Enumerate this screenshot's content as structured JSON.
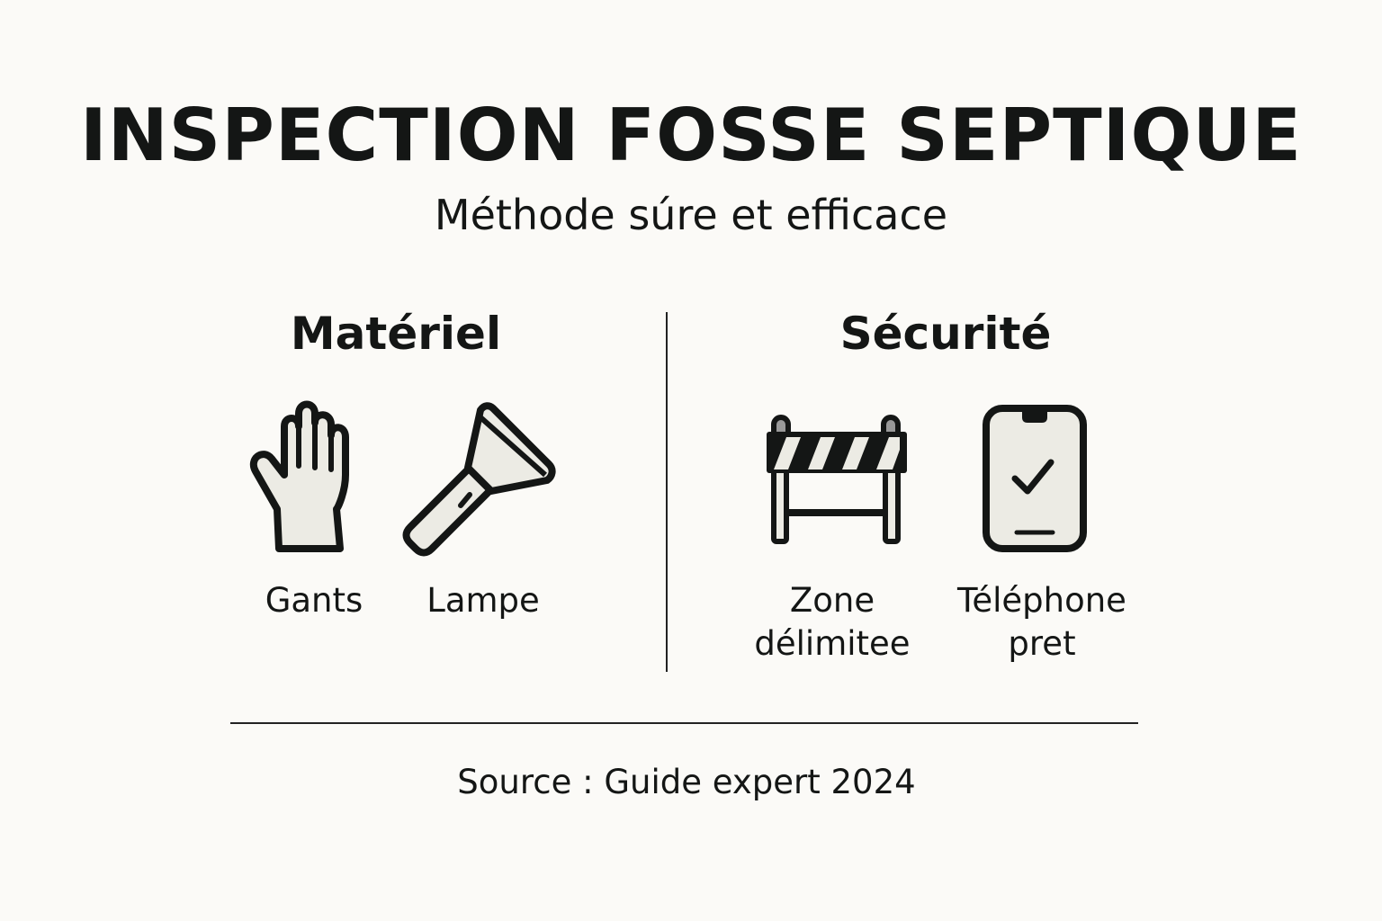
{
  "title": "INSPECTION FOSSE SEPTIQUE",
  "subtitle": "Méthode súre et efficace",
  "sections": [
    {
      "heading": "Matériel",
      "items": [
        {
          "icon": "glove-icon",
          "label": "Gants"
        },
        {
          "icon": "flashlight-icon",
          "label": "Lampe"
        }
      ]
    },
    {
      "heading": "Sécurité",
      "items": [
        {
          "icon": "barrier-icon",
          "label_lines": [
            "Zone",
            "délimitee"
          ]
        },
        {
          "icon": "phone-check-icon",
          "label_lines": [
            "Téléphone",
            "pret"
          ]
        }
      ]
    }
  ],
  "footer": {
    "source": "Source : Guide expert 2024"
  },
  "colors": {
    "background": "#fbfaf7",
    "icon_fill": "#ecebe4",
    "stroke": "#141615"
  }
}
